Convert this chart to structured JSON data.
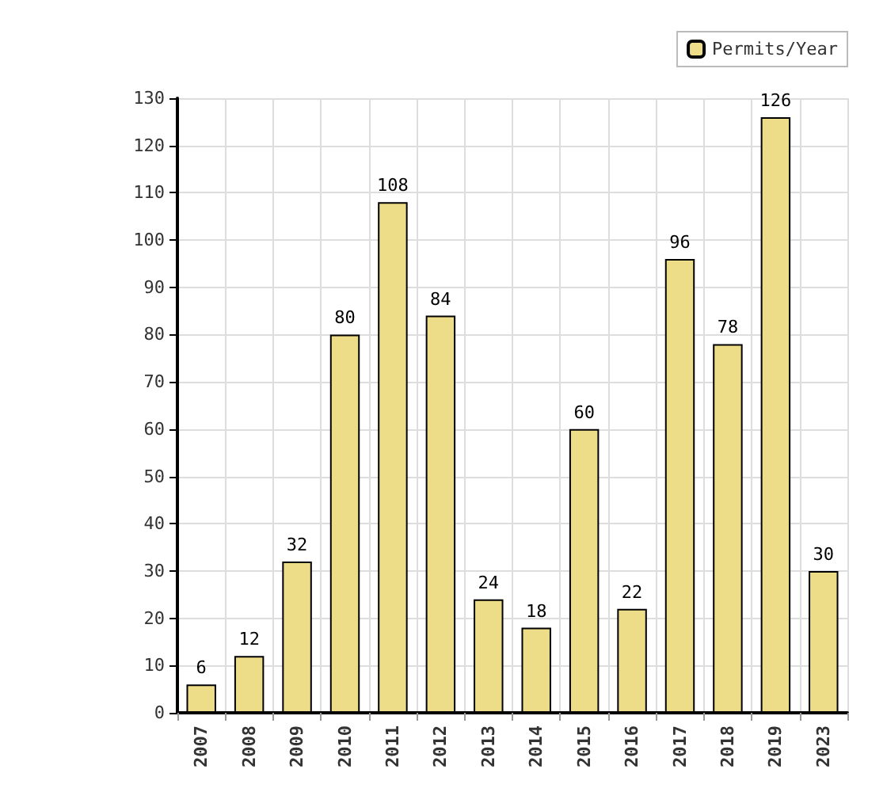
{
  "chart_data": {
    "type": "bar",
    "categories": [
      "2007",
      "2008",
      "2009",
      "2010",
      "2011",
      "2012",
      "2013",
      "2014",
      "2015",
      "2016",
      "2017",
      "2018",
      "2019",
      "2023"
    ],
    "series": [
      {
        "name": "Permits/Year",
        "color": "#eedd88",
        "values": [
          6,
          12,
          32,
          80,
          108,
          84,
          24,
          18,
          60,
          22,
          96,
          78,
          126,
          30
        ]
      }
    ],
    "ylim": [
      0,
      130
    ],
    "yticks": [
      0,
      10,
      20,
      30,
      40,
      50,
      60,
      70,
      80,
      90,
      100,
      110,
      120,
      130
    ],
    "grid": true,
    "legend": "top right",
    "data_labels": true
  }
}
